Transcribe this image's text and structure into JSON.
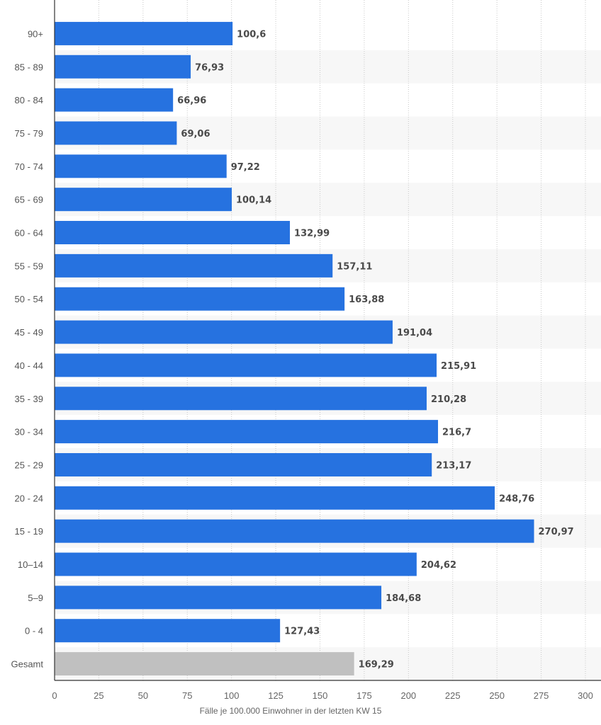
{
  "chart_data": {
    "type": "bar",
    "orientation": "horizontal",
    "categories": [
      "90+",
      "85 - 89",
      "80 - 84",
      "75 - 79",
      "70 - 74",
      "65 - 69",
      "60 - 64",
      "55 - 59",
      "50 - 54",
      "45 - 49",
      "40 - 44",
      "35 - 39",
      "30 - 34",
      "25 - 29",
      "20 - 24",
      "15 - 19",
      "10–14",
      "5–9",
      "0 - 4",
      "Gesamt"
    ],
    "values": [
      100.6,
      76.93,
      66.96,
      69.06,
      97.22,
      100.14,
      132.99,
      157.11,
      163.88,
      191.04,
      215.91,
      210.28,
      216.7,
      213.17,
      248.76,
      270.97,
      204.62,
      184.68,
      127.43,
      169.29
    ],
    "value_labels": [
      "100,6",
      "76,93",
      "66,96",
      "69,06",
      "97,22",
      "100,14",
      "132,99",
      "157,11",
      "163,88",
      "191,04",
      "215,91",
      "210,28",
      "216,7",
      "213,17",
      "248,76",
      "270,97",
      "204,62",
      "184,68",
      "127,43",
      "169,29"
    ],
    "highlight_category": "Gesamt",
    "xlabel": "Fälle je 100.000 Einwohner in der letzten KW 15",
    "xlim": [
      0,
      300
    ],
    "xticks": [
      0,
      25,
      50,
      75,
      100,
      125,
      150,
      175,
      200,
      225,
      250,
      275,
      300
    ],
    "grid": "vertical-dotted",
    "colors": {
      "bar": "#2672e0",
      "highlight_bar": "#c0c0c0",
      "row_stripe": "#f7f7f7",
      "grid": "#c8c8c8",
      "axis": "#333333"
    }
  }
}
